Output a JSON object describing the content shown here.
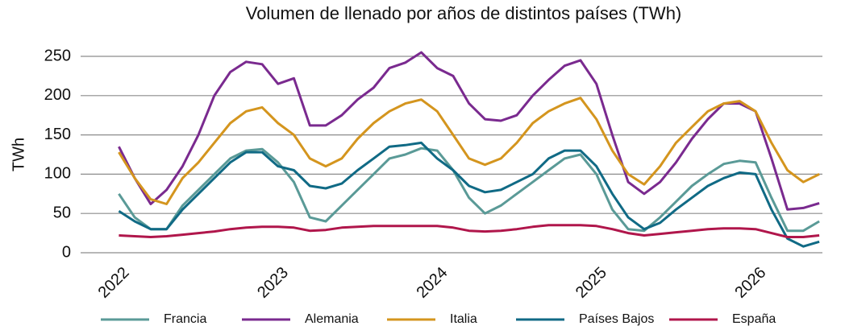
{
  "chart_data": {
    "type": "line",
    "title": "Volumen de llenado por años de distintos países (TWh)",
    "ylabel": "TWh",
    "x": [
      2022.0,
      2022.1,
      2022.2,
      2022.3,
      2022.4,
      2022.5,
      2022.6,
      2022.7,
      2022.8,
      2022.9,
      2023.0,
      2023.1,
      2023.2,
      2023.3,
      2023.4,
      2023.5,
      2023.6,
      2023.7,
      2023.8,
      2023.9,
      2024.0,
      2024.1,
      2024.2,
      2024.3,
      2024.4,
      2024.5,
      2024.6,
      2024.7,
      2024.8,
      2024.9,
      2025.0,
      2025.1,
      2025.2,
      2025.3,
      2025.4,
      2025.5,
      2025.6,
      2025.7,
      2025.8,
      2025.9,
      2026.0,
      2026.1,
      2026.2,
      2026.3,
      2026.4
    ],
    "series": [
      {
        "name": "Francia",
        "color": "#5a9a97",
        "values": [
          75,
          45,
          30,
          30,
          60,
          80,
          100,
          120,
          130,
          132,
          115,
          90,
          45,
          40,
          60,
          80,
          100,
          120,
          125,
          133,
          130,
          105,
          70,
          50,
          60,
          75,
          90,
          105,
          120,
          125,
          100,
          55,
          30,
          28,
          45,
          65,
          85,
          100,
          113,
          117,
          115,
          70,
          28,
          28,
          40
        ]
      },
      {
        "name": "Alemania",
        "color": "#7a2a8f",
        "values": [
          135,
          95,
          62,
          80,
          110,
          150,
          200,
          230,
          243,
          240,
          215,
          222,
          162,
          162,
          175,
          195,
          210,
          235,
          242,
          255,
          235,
          225,
          190,
          170,
          168,
          175,
          200,
          220,
          238,
          245,
          215,
          150,
          90,
          75,
          90,
          115,
          145,
          170,
          190,
          190,
          180,
          120,
          55,
          57,
          63
        ]
      },
      {
        "name": "Italia",
        "color": "#d4951e",
        "values": [
          128,
          95,
          68,
          62,
          95,
          115,
          140,
          165,
          180,
          185,
          165,
          150,
          120,
          110,
          120,
          145,
          165,
          180,
          190,
          195,
          180,
          150,
          120,
          112,
          120,
          140,
          165,
          180,
          190,
          197,
          170,
          130,
          100,
          87,
          110,
          140,
          160,
          180,
          190,
          193,
          180,
          140,
          105,
          90,
          100
        ]
      },
      {
        "name": "Países Bajos",
        "color": "#106a85",
        "values": [
          53,
          40,
          30,
          30,
          55,
          75,
          95,
          115,
          128,
          128,
          110,
          105,
          85,
          82,
          88,
          105,
          120,
          135,
          137,
          140,
          120,
          105,
          85,
          77,
          80,
          90,
          100,
          120,
          130,
          130,
          110,
          75,
          45,
          30,
          38,
          55,
          70,
          85,
          95,
          102,
          100,
          55,
          18,
          8,
          14
        ]
      },
      {
        "name": "España",
        "color": "#b0164b",
        "values": [
          22,
          21,
          20,
          21,
          23,
          25,
          27,
          30,
          32,
          33,
          33,
          32,
          28,
          29,
          32,
          33,
          34,
          34,
          34,
          34,
          34,
          32,
          28,
          27,
          28,
          30,
          33,
          35,
          35,
          35,
          34,
          30,
          25,
          22,
          24,
          26,
          28,
          30,
          31,
          31,
          30,
          25,
          20,
          20,
          22
        ]
      }
    ],
    "xlim": [
      2021.76,
      2026.42
    ],
    "xticks": [
      2022,
      2023,
      2024,
      2025,
      2026
    ],
    "ylim": [
      0,
      250
    ],
    "yticks": [
      0,
      50,
      100,
      150,
      200,
      250
    ],
    "grid": true,
    "legend": "bottom"
  }
}
